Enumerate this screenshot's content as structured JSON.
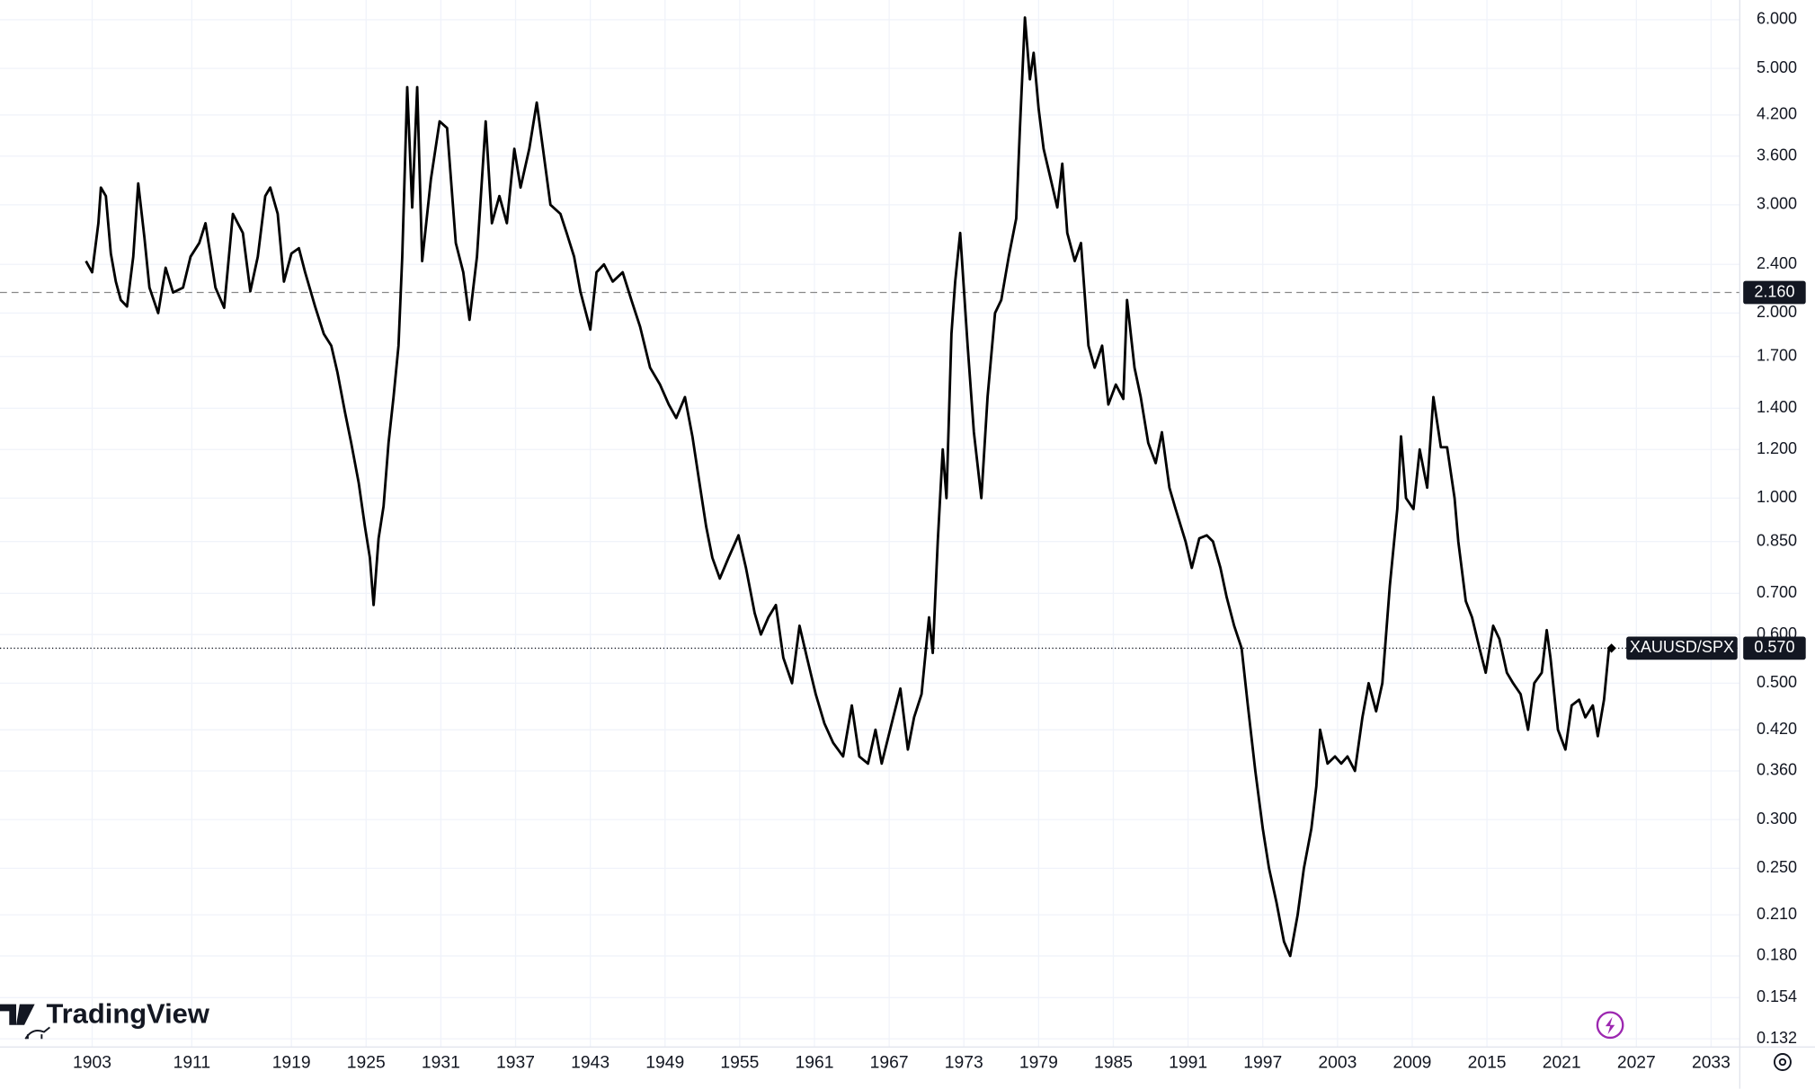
{
  "chart_data": {
    "type": "line",
    "watermark": "TradingView",
    "log_scale": true,
    "grid": true,
    "x": [
      1902.5,
      1903,
      1903.5,
      1903.7,
      1904.1,
      1904.5,
      1904.9,
      1905.3,
      1905.8,
      1906.3,
      1906.7,
      1907.2,
      1907.6,
      1908.3,
      1908.9,
      1909.5,
      1910.3,
      1910.9,
      1911.6,
      1912.1,
      1912.9,
      1913.6,
      1914.3,
      1915.1,
      1915.7,
      1916.3,
      1916.9,
      1917.3,
      1917.9,
      1918.4,
      1919,
      1919.6,
      1920.1,
      1920.9,
      1921.6,
      1922.2,
      1922.7,
      1923.3,
      1923.8,
      1924.4,
      1924.9,
      1925.3,
      1925.6,
      1926,
      1926.4,
      1926.8,
      1927.2,
      1927.6,
      1927.9,
      1928.3,
      1928.7,
      1929.1,
      1929.5,
      1930.2,
      1930.9,
      1931.5,
      1932.2,
      1932.8,
      1933.3,
      1933.9,
      1934.6,
      1935.1,
      1935.7,
      1936.3,
      1936.9,
      1937.4,
      1938.1,
      1938.7,
      1939.2,
      1939.8,
      1940.6,
      1941.1,
      1941.7,
      1942.2,
      1943,
      1943.5,
      1944.1,
      1944.8,
      1945.6,
      1946.3,
      1947,
      1947.8,
      1948.6,
      1949.3,
      1949.9,
      1950.6,
      1951.2,
      1951.7,
      1952.3,
      1952.8,
      1953.4,
      1954.1,
      1954.9,
      1955.5,
      1956.2,
      1956.7,
      1957.3,
      1957.9,
      1958.5,
      1959.2,
      1959.8,
      1960.4,
      1961.1,
      1961.8,
      1962.5,
      1963.3,
      1964,
      1964.6,
      1965.3,
      1965.9,
      1966.4,
      1967.2,
      1967.9,
      1968.5,
      1969,
      1969.6,
      1970.2,
      1970.5,
      1970.9,
      1971.3,
      1971.6,
      1972,
      1972.3,
      1972.7,
      1973.3,
      1973.8,
      1974.4,
      1974.9,
      1975.5,
      1976,
      1976.6,
      1977.2,
      1977.5,
      1977.9,
      1978.3,
      1978.6,
      1979,
      1979.4,
      1979.9,
      1980.5,
      1980.9,
      1981.3,
      1981.9,
      1982.4,
      1983,
      1983.5,
      1984.1,
      1984.6,
      1985.2,
      1985.8,
      1986.1,
      1986.7,
      1987.2,
      1987.8,
      1988.4,
      1988.9,
      1989.5,
      1990,
      1990.8,
      1991.3,
      1991.9,
      1992.5,
      1993,
      1993.6,
      1994.1,
      1994.7,
      1995.3,
      1995.8,
      1996.4,
      1997,
      1997.5,
      1998.1,
      1998.7,
      1999.2,
      1999.8,
      2000.3,
      2000.9,
      2001.3,
      2001.6,
      2002.2,
      2002.8,
      2003.3,
      2003.8,
      2004.4,
      2005,
      2005.5,
      2006.1,
      2006.6,
      2007.2,
      2007.8,
      2008.1,
      2008.5,
      2009.1,
      2009.6,
      2010.2,
      2010.7,
      2011.3,
      2011.8,
      2012.4,
      2012.7,
      2013.3,
      2013.8,
      2014.4,
      2014.9,
      2015.5,
      2016,
      2016.6,
      2017.1,
      2017.7,
      2018.3,
      2018.8,
      2019.4,
      2019.8,
      2020.1,
      2020.7,
      2021.3,
      2021.8,
      2022.4,
      2022.9,
      2023.5,
      2023.9,
      2024.4,
      2024.8,
      2025
    ],
    "series": [
      {
        "name": "XAUUSD/SPX",
        "color": "#000000",
        "values": [
          2.43,
          2.33,
          2.8,
          3.2,
          3.1,
          2.5,
          2.25,
          2.1,
          2.05,
          2.47,
          3.25,
          2.65,
          2.2,
          2.0,
          2.37,
          2.16,
          2.2,
          2.47,
          2.6,
          2.8,
          2.2,
          2.04,
          2.9,
          2.7,
          2.17,
          2.47,
          3.1,
          3.2,
          2.9,
          2.25,
          2.5,
          2.55,
          2.33,
          2.05,
          1.85,
          1.77,
          1.6,
          1.38,
          1.23,
          1.06,
          0.9,
          0.8,
          0.67,
          0.86,
          0.97,
          1.23,
          1.46,
          1.77,
          2.47,
          4.66,
          2.97,
          4.66,
          2.43,
          3.3,
          4.1,
          4.0,
          2.6,
          2.33,
          1.95,
          2.47,
          4.1,
          2.8,
          3.1,
          2.8,
          3.7,
          3.2,
          3.7,
          4.4,
          3.7,
          3.0,
          2.9,
          2.7,
          2.47,
          2.17,
          1.88,
          2.33,
          2.4,
          2.25,
          2.33,
          2.1,
          1.9,
          1.63,
          1.53,
          1.42,
          1.35,
          1.46,
          1.26,
          1.08,
          0.9,
          0.8,
          0.74,
          0.8,
          0.87,
          0.77,
          0.65,
          0.6,
          0.64,
          0.67,
          0.55,
          0.5,
          0.62,
          0.55,
          0.48,
          0.43,
          0.4,
          0.38,
          0.46,
          0.38,
          0.37,
          0.42,
          0.37,
          0.43,
          0.49,
          0.39,
          0.44,
          0.48,
          0.64,
          0.56,
          0.85,
          1.2,
          1.0,
          1.85,
          2.25,
          2.7,
          1.77,
          1.28,
          1.0,
          1.46,
          2.0,
          2.1,
          2.47,
          2.85,
          4.0,
          6.05,
          4.8,
          5.3,
          4.3,
          3.7,
          3.35,
          2.97,
          3.5,
          2.7,
          2.43,
          2.6,
          1.77,
          1.63,
          1.77,
          1.42,
          1.53,
          1.45,
          2.1,
          1.63,
          1.46,
          1.23,
          1.14,
          1.28,
          1.04,
          0.96,
          0.85,
          0.77,
          0.86,
          0.87,
          0.85,
          0.77,
          0.69,
          0.62,
          0.57,
          0.46,
          0.36,
          0.29,
          0.25,
          0.22,
          0.19,
          0.18,
          0.21,
          0.25,
          0.29,
          0.34,
          0.42,
          0.37,
          0.38,
          0.37,
          0.38,
          0.36,
          0.44,
          0.5,
          0.45,
          0.5,
          0.72,
          0.96,
          1.26,
          1.0,
          0.96,
          1.2,
          1.04,
          1.46,
          1.21,
          1.21,
          1.0,
          0.85,
          0.68,
          0.64,
          0.57,
          0.52,
          0.62,
          0.59,
          0.52,
          0.5,
          0.48,
          0.42,
          0.5,
          0.52,
          0.61,
          0.55,
          0.42,
          0.39,
          0.46,
          0.47,
          0.44,
          0.46,
          0.41,
          0.47,
          0.57,
          0.57
        ]
      }
    ],
    "last_value": {
      "value": 0.57,
      "label": "0.570"
    },
    "crosshair": {
      "value": 2.16,
      "label": "2.160"
    },
    "xlim": [
      1895.6,
      2035.3
    ],
    "xticks": [
      1903,
      1911,
      1919,
      1925,
      1931,
      1937,
      1943,
      1949,
      1955,
      1961,
      1967,
      1973,
      1979,
      1985,
      1991,
      1997,
      2003,
      2009,
      2015,
      2021,
      2027,
      2033
    ],
    "ylim": [
      0.128,
      6.46
    ],
    "yticks": [
      {
        "value": 6,
        "label": "6.000"
      },
      {
        "value": 5,
        "label": "5.000"
      },
      {
        "value": 4.2,
        "label": "4.200"
      },
      {
        "value": 3.6,
        "label": "3.600"
      },
      {
        "value": 3,
        "label": "3.000"
      },
      {
        "value": 2.4,
        "label": "2.400"
      },
      {
        "value": 2,
        "label": "2.000"
      },
      {
        "value": 1.7,
        "label": "1.700"
      },
      {
        "value": 1.4,
        "label": "1.400"
      },
      {
        "value": 1.2,
        "label": "1.200"
      },
      {
        "value": 1,
        "label": "1.000"
      },
      {
        "value": 0.85,
        "label": "0.850"
      },
      {
        "value": 0.7,
        "label": "0.700"
      },
      {
        "value": 0.6,
        "label": "0.600"
      },
      {
        "value": 0.5,
        "label": "0.500"
      },
      {
        "value": 0.42,
        "label": "0.420"
      },
      {
        "value": 0.36,
        "label": "0.360"
      },
      {
        "value": 0.3,
        "label": "0.300"
      },
      {
        "value": 0.25,
        "label": "0.250"
      },
      {
        "value": 0.21,
        "label": "0.210"
      },
      {
        "value": 0.18,
        "label": "0.180"
      },
      {
        "value": 0.154,
        "label": "0.154"
      },
      {
        "value": 0.132,
        "label": "0.132"
      }
    ]
  }
}
